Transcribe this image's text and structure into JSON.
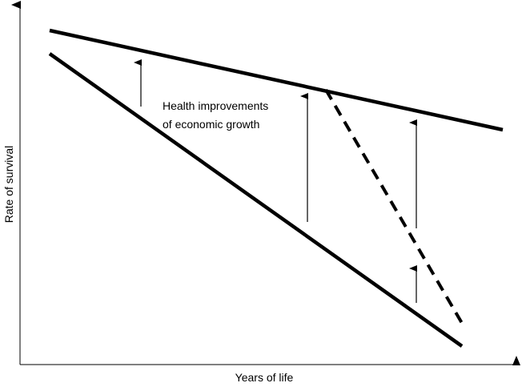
{
  "annotation": {
    "line1": "Health improvements",
    "line2": "of economic growth"
  },
  "axes": {
    "y_label": "Rate of survival",
    "x_label": "Years of life"
  }
}
